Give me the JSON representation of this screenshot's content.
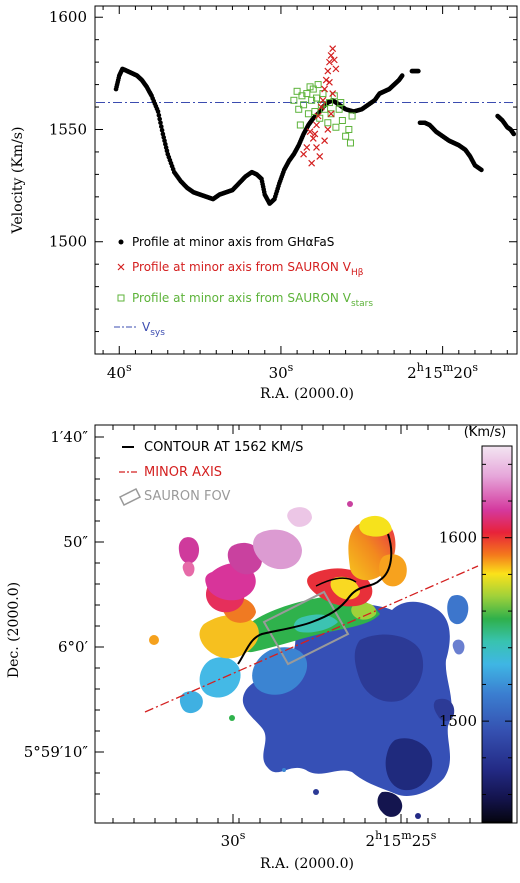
{
  "chart_data": [
    {
      "type": "scatter",
      "xlabel": "R.A. (2000.0)",
      "ylabel": "Velocity (Km/s)",
      "ylim": [
        1450,
        1605
      ],
      "y_ticks": [
        "1500",
        "1550",
        "1600"
      ],
      "x_ticks": [
        {
          "main": "40",
          "sup": "s"
        },
        {
          "main": "30",
          "sup": "s"
        },
        {
          "pre": "2",
          "presup": "h",
          "mid": "15",
          "midsup": "m",
          "main": "20",
          "sup": "s"
        }
      ],
      "x_tick_values": [
        40,
        30,
        20
      ],
      "xlim": [
        41.5,
        15.4
      ],
      "vsys": 1562,
      "legend": [
        {
          "marker": "dot",
          "color": "#000000",
          "text": "Profile at minor axis from GHαFaS",
          "sub": ""
        },
        {
          "marker": "cross",
          "color": "#d42020",
          "text": "Profile at minor axis from SAURON V",
          "sub": "Hβ"
        },
        {
          "marker": "square",
          "color": "#5db33a",
          "text": "Profile at minor axis from SAURON V",
          "sub": "stars"
        },
        {
          "marker": "dashdot",
          "color": "#3b4cb0",
          "text": "V",
          "sub": "sys"
        }
      ],
      "series": [
        {
          "name": "Profile at minor axis from GHαFaS",
          "color": "#000000",
          "segments": [
            [
              [
                40.2,
                1568
              ],
              [
                40.0,
                1574
              ],
              [
                39.8,
                1577
              ],
              [
                39.5,
                1576
              ],
              [
                39.2,
                1575
              ],
              [
                38.9,
                1574
              ],
              [
                38.6,
                1572
              ],
              [
                38.3,
                1569
              ],
              [
                38.0,
                1565
              ],
              [
                37.6,
                1558
              ],
              [
                37.3,
                1548
              ],
              [
                37.0,
                1539
              ],
              [
                36.6,
                1531
              ],
              [
                36.2,
                1527
              ],
              [
                35.8,
                1524
              ],
              [
                35.4,
                1522
              ],
              [
                35.0,
                1521
              ],
              [
                34.6,
                1520
              ],
              [
                34.2,
                1519
              ],
              [
                33.8,
                1521
              ],
              [
                33.4,
                1522
              ],
              [
                33.0,
                1523
              ],
              [
                32.6,
                1526
              ],
              [
                32.2,
                1529
              ],
              [
                31.8,
                1531
              ],
              [
                31.5,
                1530
              ],
              [
                31.2,
                1528
              ],
              [
                31.0,
                1521
              ],
              [
                30.7,
                1517
              ],
              [
                30.4,
                1519
              ],
              [
                30.1,
                1526
              ],
              [
                29.8,
                1532
              ],
              [
                29.5,
                1536
              ],
              [
                29.2,
                1539
              ],
              [
                28.9,
                1543
              ],
              [
                28.6,
                1548
              ],
              [
                28.3,
                1552
              ],
              [
                28.0,
                1555
              ],
              [
                27.7,
                1557
              ],
              [
                27.4,
                1560
              ],
              [
                27.1,
                1562
              ],
              [
                26.8,
                1563
              ],
              [
                26.4,
                1561
              ],
              [
                26.0,
                1559
              ],
              [
                25.5,
                1558
              ],
              [
                25.0,
                1559
              ],
              [
                24.6,
                1561
              ],
              [
                24.2,
                1563
              ],
              [
                23.9,
                1566
              ],
              [
                23.6,
                1567
              ],
              [
                23.3,
                1568
              ],
              [
                23.0,
                1570
              ],
              [
                22.7,
                1572
              ],
              [
                22.5,
                1574
              ]
            ],
            [
              [
                21.9,
                1576
              ],
              [
                21.5,
                1576
              ]
            ],
            [
              [
                21.4,
                1553
              ],
              [
                21.1,
                1553
              ],
              [
                20.8,
                1552
              ],
              [
                20.4,
                1549
              ],
              [
                20.0,
                1547
              ],
              [
                19.6,
                1545
              ],
              [
                19.3,
                1544
              ],
              [
                19.0,
                1543
              ],
              [
                18.6,
                1541
              ],
              [
                18.3,
                1538
              ],
              [
                18.0,
                1534
              ],
              [
                17.6,
                1532
              ]
            ],
            [
              [
                16.6,
                1556
              ],
              [
                16.3,
                1554
              ],
              [
                16.0,
                1551
              ],
              [
                15.8,
                1550
              ],
              [
                15.6,
                1548
              ]
            ]
          ]
        },
        {
          "name": "Profile at minor axis from SAURON VHβ",
          "color": "#d42020",
          "points": [
            [
              28.6,
              1539
            ],
            [
              28.4,
              1542
            ],
            [
              28.1,
              1535
            ],
            [
              28.0,
              1546
            ],
            [
              27.9,
              1548
            ],
            [
              27.8,
              1552
            ],
            [
              27.7,
              1556
            ],
            [
              27.5,
              1560
            ],
            [
              27.4,
              1563
            ],
            [
              27.3,
              1568
            ],
            [
              27.2,
              1572
            ],
            [
              27.1,
              1576
            ],
            [
              27.0,
              1580
            ],
            [
              26.9,
              1583
            ],
            [
              26.8,
              1586
            ],
            [
              26.7,
              1581
            ],
            [
              26.6,
              1577
            ],
            [
              26.9,
              1557
            ],
            [
              27.1,
              1550
            ],
            [
              27.3,
              1545
            ],
            [
              27.6,
              1538
            ],
            [
              27.8,
              1542
            ],
            [
              28.2,
              1549
            ],
            [
              26.8,
              1566
            ],
            [
              27.0,
              1571
            ]
          ]
        },
        {
          "name": "Profile at minor axis from SAURON Vstars",
          "color": "#5db33a",
          "points": [
            [
              29.2,
              1563
            ],
            [
              29.0,
              1567
            ],
            [
              28.9,
              1559
            ],
            [
              28.7,
              1565
            ],
            [
              28.6,
              1561
            ],
            [
              28.4,
              1566
            ],
            [
              28.3,
              1557
            ],
            [
              28.1,
              1563
            ],
            [
              28.0,
              1568
            ],
            [
              27.9,
              1558
            ],
            [
              27.8,
              1564
            ],
            [
              27.6,
              1555
            ],
            [
              27.5,
              1561
            ],
            [
              27.4,
              1566
            ],
            [
              27.3,
              1559
            ],
            [
              27.1,
              1553
            ],
            [
              27.0,
              1562
            ],
            [
              26.9,
              1557
            ],
            [
              26.7,
              1565
            ],
            [
              26.6,
              1551
            ],
            [
              26.4,
              1559
            ],
            [
              26.2,
              1554
            ],
            [
              26.0,
              1547
            ],
            [
              25.8,
              1550
            ],
            [
              25.7,
              1544
            ],
            [
              25.6,
              1556
            ],
            [
              28.8,
              1552
            ],
            [
              28.2,
              1569
            ],
            [
              27.7,
              1570
            ],
            [
              26.3,
              1562
            ]
          ]
        }
      ]
    },
    {
      "type": "heatmap",
      "xlabel": "R.A. (2000.0)",
      "ylabel": "Dec. (2000.0)",
      "x_ticks": [
        {
          "main": "30",
          "sup": "s"
        },
        {
          "pre": "2",
          "presup": "h",
          "mid": "15",
          "midsup": "m",
          "main": "25",
          "sup": "s"
        }
      ],
      "y_ticks": [
        {
          "main": "1′40″"
        },
        {
          "main": "50″"
        },
        {
          "main": "6°0′"
        },
        {
          "main": "5°59′10″"
        }
      ],
      "legend": [
        {
          "style": "solid",
          "color": "#000000",
          "text": "CONTOUR AT 1562 KM/S"
        },
        {
          "style": "dashdot",
          "color": "#d42020",
          "text": "MINOR AXIS"
        },
        {
          "style": "box",
          "color": "#9a9a9a",
          "text": "SAURON FOV"
        }
      ],
      "colorbar": {
        "title": "(Km/s)",
        "ticks": [
          "1600",
          "1500"
        ],
        "tick_values": [
          1600,
          1500
        ],
        "range": [
          1445,
          1650
        ]
      }
    }
  ]
}
